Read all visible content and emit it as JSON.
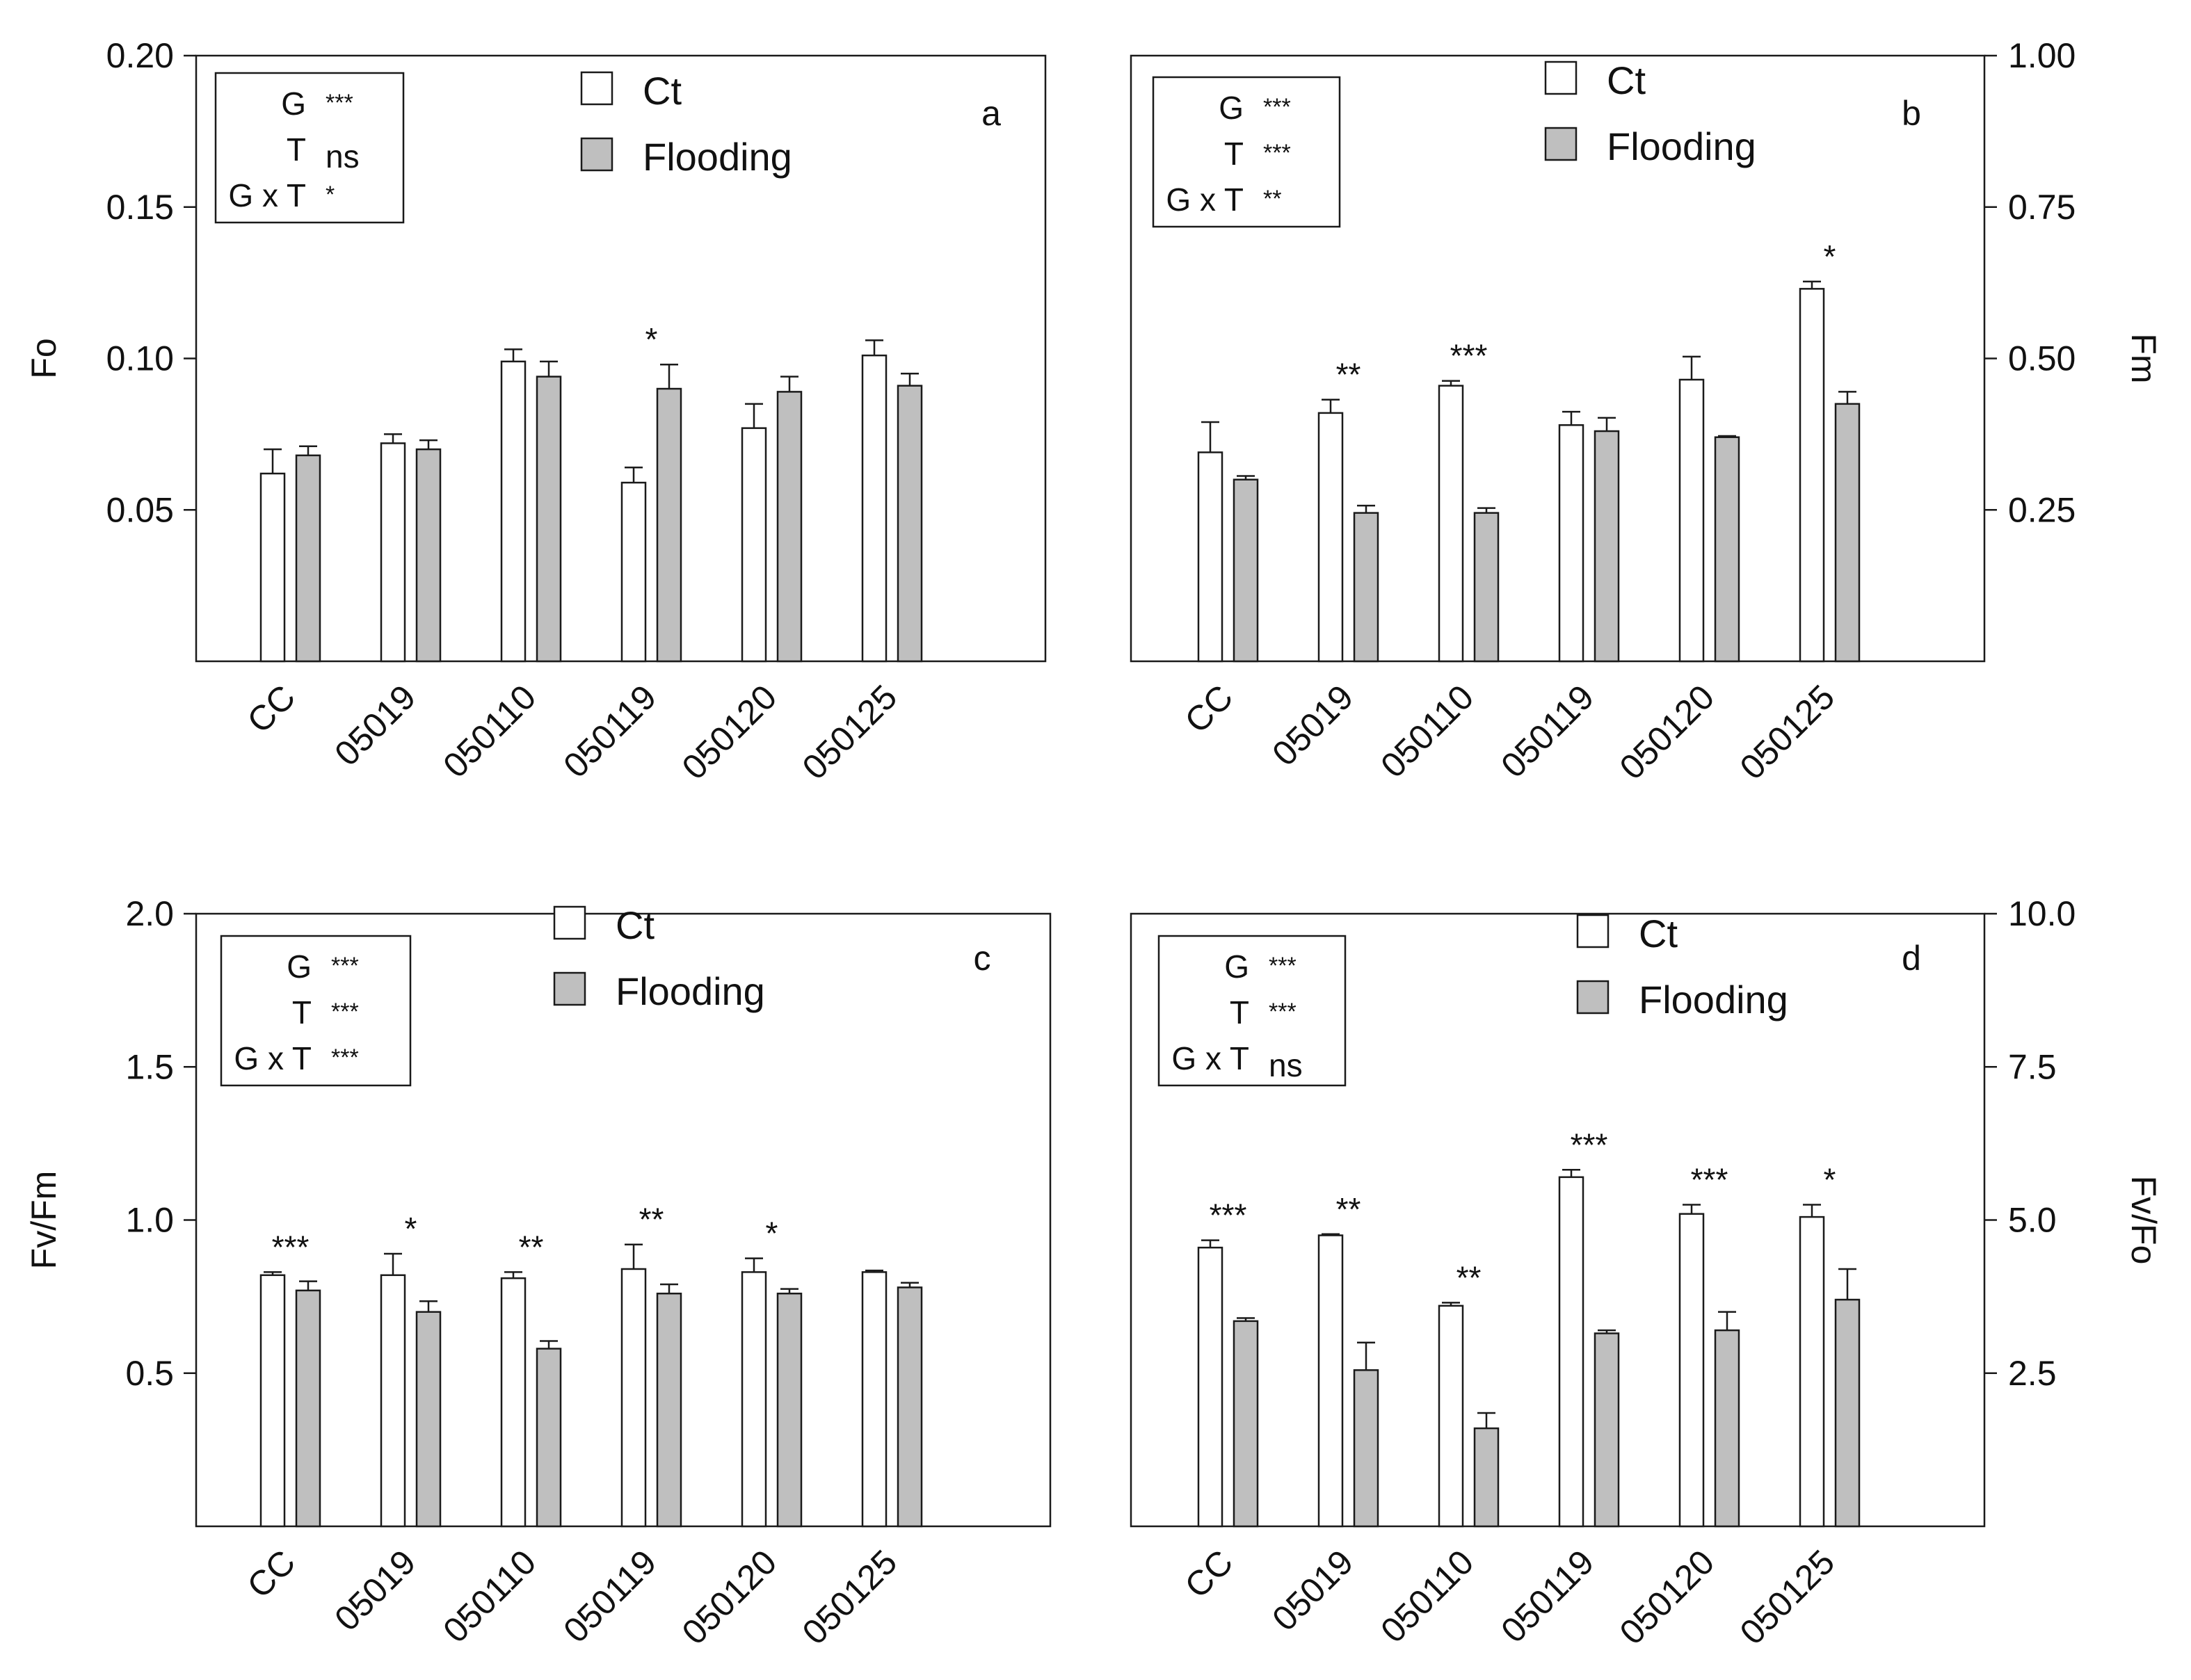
{
  "colors": {
    "ct": "#ffffff",
    "flooding": "#bfbfbf",
    "stroke": "#1a1a1a"
  },
  "categories": [
    "CC",
    "05019",
    "050110",
    "050119",
    "050120",
    "050125"
  ],
  "chart_data": [
    {
      "type": "bar",
      "panel": "a",
      "ylabel": "Fo",
      "axis_side": "left",
      "ylim": [
        0,
        0.2
      ],
      "ytick_values": [
        0.05,
        0.1,
        0.15,
        0.2
      ],
      "ytick_labels": [
        "0.05",
        "0.10",
        "0.15",
        "0.20"
      ],
      "series": [
        {
          "name": "Ct",
          "values": [
            0.062,
            0.072,
            0.099,
            0.059,
            0.077,
            0.101
          ],
          "errors": [
            0.008,
            0.003,
            0.004,
            0.005,
            0.008,
            0.005
          ]
        },
        {
          "name": "Flooding",
          "values": [
            0.068,
            0.07,
            0.094,
            0.09,
            0.089,
            0.091
          ],
          "errors": [
            0.003,
            0.003,
            0.005,
            0.008,
            0.005,
            0.004
          ]
        }
      ],
      "significance": [
        "",
        "",
        "",
        "*",
        "",
        ""
      ],
      "stats": [
        {
          "label": "G",
          "value": "***"
        },
        {
          "label": "T",
          "value": "ns"
        },
        {
          "label": "G x T",
          "value": "*"
        }
      ],
      "legend": [
        "Ct",
        "Flooding"
      ]
    },
    {
      "type": "bar",
      "panel": "b",
      "ylabel": "Fm",
      "axis_side": "right",
      "ylim": [
        0,
        1.0
      ],
      "ytick_values": [
        0.25,
        0.5,
        0.75,
        1.0
      ],
      "ytick_labels": [
        "0.25",
        "0.50",
        "0.75",
        "1.00"
      ],
      "series": [
        {
          "name": "Ct",
          "values": [
            0.345,
            0.41,
            0.455,
            0.39,
            0.465,
            0.615
          ],
          "errors": [
            0.05,
            0.022,
            0.008,
            0.022,
            0.038,
            0.012
          ]
        },
        {
          "name": "Flooding",
          "values": [
            0.3,
            0.245,
            0.245,
            0.38,
            0.37,
            0.425
          ],
          "errors": [
            0.006,
            0.012,
            0.008,
            0.022,
            0.002,
            0.02
          ]
        }
      ],
      "significance": [
        "",
        "**",
        "***",
        "",
        "",
        "*"
      ],
      "stats": [
        {
          "label": "G",
          "value": "***"
        },
        {
          "label": "T",
          "value": "***"
        },
        {
          "label": "G x T",
          "value": "**"
        }
      ],
      "legend": [
        "Ct",
        "Flooding"
      ]
    },
    {
      "type": "bar",
      "panel": "c",
      "ylabel": "Fv/Fm",
      "axis_side": "left",
      "ylim": [
        0,
        2.0
      ],
      "ytick_values": [
        0.5,
        1.0,
        1.5,
        2.0
      ],
      "ytick_labels": [
        "0.5",
        "1.0",
        "1.5",
        "2.0"
      ],
      "series": [
        {
          "name": "Ct",
          "values": [
            0.82,
            0.82,
            0.81,
            0.84,
            0.83,
            0.83
          ],
          "errors": [
            0.01,
            0.07,
            0.02,
            0.08,
            0.045,
            0.005
          ]
        },
        {
          "name": "Flooding",
          "values": [
            0.77,
            0.7,
            0.58,
            0.76,
            0.76,
            0.78
          ],
          "errors": [
            0.03,
            0.035,
            0.025,
            0.03,
            0.015,
            0.015
          ]
        }
      ],
      "significance": [
        "***",
        "*",
        "**",
        "**",
        "*",
        ""
      ],
      "stats": [
        {
          "label": "G",
          "value": "***"
        },
        {
          "label": "T",
          "value": "***"
        },
        {
          "label": "G x T",
          "value": "***"
        }
      ],
      "legend": [
        "Ct",
        "Flooding"
      ]
    },
    {
      "type": "bar",
      "panel": "d",
      "ylabel": "Fv/Fo",
      "axis_side": "right",
      "ylim": [
        0,
        10.0
      ],
      "ytick_values": [
        2.5,
        5.0,
        7.5,
        10.0
      ],
      "ytick_labels": [
        "2.5",
        "5.0",
        "7.5",
        "10.0"
      ],
      "series": [
        {
          "name": "Ct",
          "values": [
            4.55,
            4.75,
            3.6,
            5.7,
            5.1,
            5.05
          ],
          "errors": [
            0.12,
            0.02,
            0.05,
            0.12,
            0.15,
            0.2
          ]
        },
        {
          "name": "Flooding",
          "values": [
            3.35,
            2.55,
            1.6,
            3.15,
            3.2,
            3.7
          ],
          "errors": [
            0.05,
            0.45,
            0.25,
            0.05,
            0.3,
            0.5
          ]
        }
      ],
      "significance": [
        "***",
        "**",
        "**",
        "***",
        "***",
        "*"
      ],
      "stats": [
        {
          "label": "G",
          "value": "***"
        },
        {
          "label": "T",
          "value": "***"
        },
        {
          "label": "G x T",
          "value": "ns"
        }
      ],
      "legend": [
        "Ct",
        "Flooding"
      ]
    }
  ]
}
